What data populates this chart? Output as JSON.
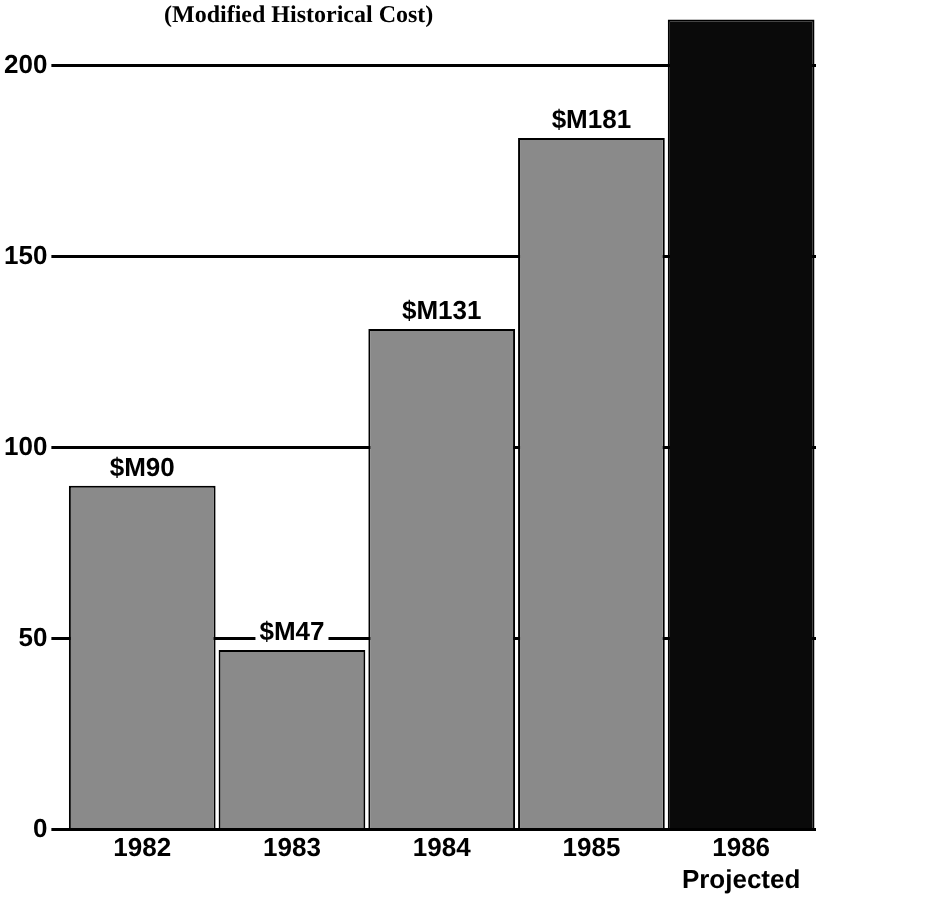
{
  "chart_data": {
    "type": "bar",
    "subtitle": "(Modified Historical Cost)",
    "categories": [
      "1982",
      "1983",
      "1984",
      "1985",
      "1986\nProjected"
    ],
    "values": [
      90,
      47,
      131,
      181,
      212
    ],
    "value_labels": [
      "$M90",
      "$M47",
      "$M131",
      "$M181",
      null
    ],
    "colors": [
      "#8a8a8a",
      "#8a8a8a",
      "#8a8a8a",
      "#8a8a8a",
      "#0a0a0a"
    ],
    "ylim": [
      0,
      212
    ],
    "yticks": [
      0,
      50,
      100,
      150,
      200
    ],
    "grid": "y",
    "legend": false
  }
}
